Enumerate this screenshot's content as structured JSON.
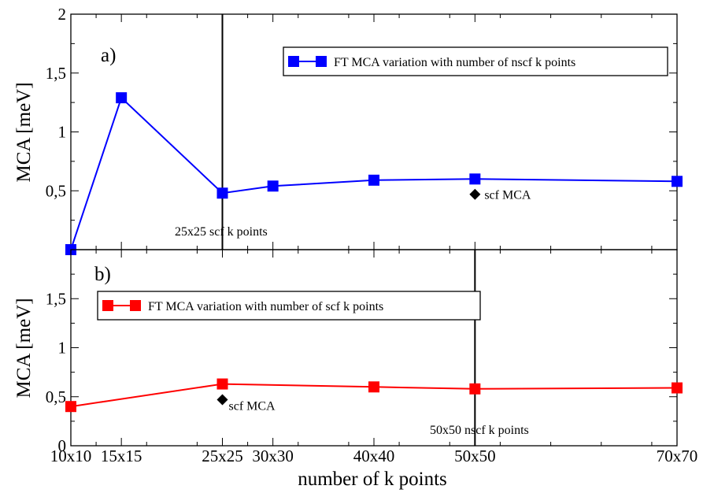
{
  "chart_data": [
    {
      "panel": "a)",
      "type": "line",
      "ylabel": "MCA [meV]",
      "ylim": [
        0,
        2
      ],
      "yticks": [
        "2",
        "1,5",
        "1",
        "0,5"
      ],
      "x": [
        10,
        15,
        25,
        30,
        40,
        50,
        70
      ],
      "series": [
        {
          "name": "FT MCA variation with number of nscf k points",
          "color": "#0000ff",
          "values": [
            0.0,
            1.29,
            0.48,
            0.54,
            0.59,
            0.6,
            0.58
          ]
        }
      ],
      "extra_points": [
        {
          "x": 50,
          "y": 0.47,
          "label": "scf MCA"
        }
      ],
      "vline": {
        "x": 25,
        "label": "25x25 scf k points"
      },
      "legend": "top-right"
    },
    {
      "panel": "b)",
      "type": "line",
      "ylabel": "MCA [meV]",
      "ylim": [
        0,
        2
      ],
      "yticks": [
        "1,5",
        "1",
        "0,5",
        "0"
      ],
      "x": [
        10,
        25,
        40,
        50,
        70
      ],
      "series": [
        {
          "name": "FT MCA variation with number of scf k points",
          "color": "#ff0000",
          "values": [
            0.4,
            0.63,
            0.6,
            0.58,
            0.59
          ]
        }
      ],
      "extra_points": [
        {
          "x": 25,
          "y": 0.47,
          "label": "scf MCA"
        }
      ],
      "vline": {
        "x": 50,
        "label": "50x50 nscf k points"
      },
      "legend": "top-left"
    }
  ],
  "xaxis": {
    "label": "number of k points",
    "ticks": [
      {
        "value": 10,
        "label": "10x10"
      },
      {
        "value": 15,
        "label": "15x15"
      },
      {
        "value": 25,
        "label": "25x25"
      },
      {
        "value": 30,
        "label": "30x30"
      },
      {
        "value": 40,
        "label": "40x40"
      },
      {
        "value": 50,
        "label": "50x50"
      },
      {
        "value": 70,
        "label": "70x70"
      }
    ],
    "range": [
      10,
      70
    ]
  }
}
